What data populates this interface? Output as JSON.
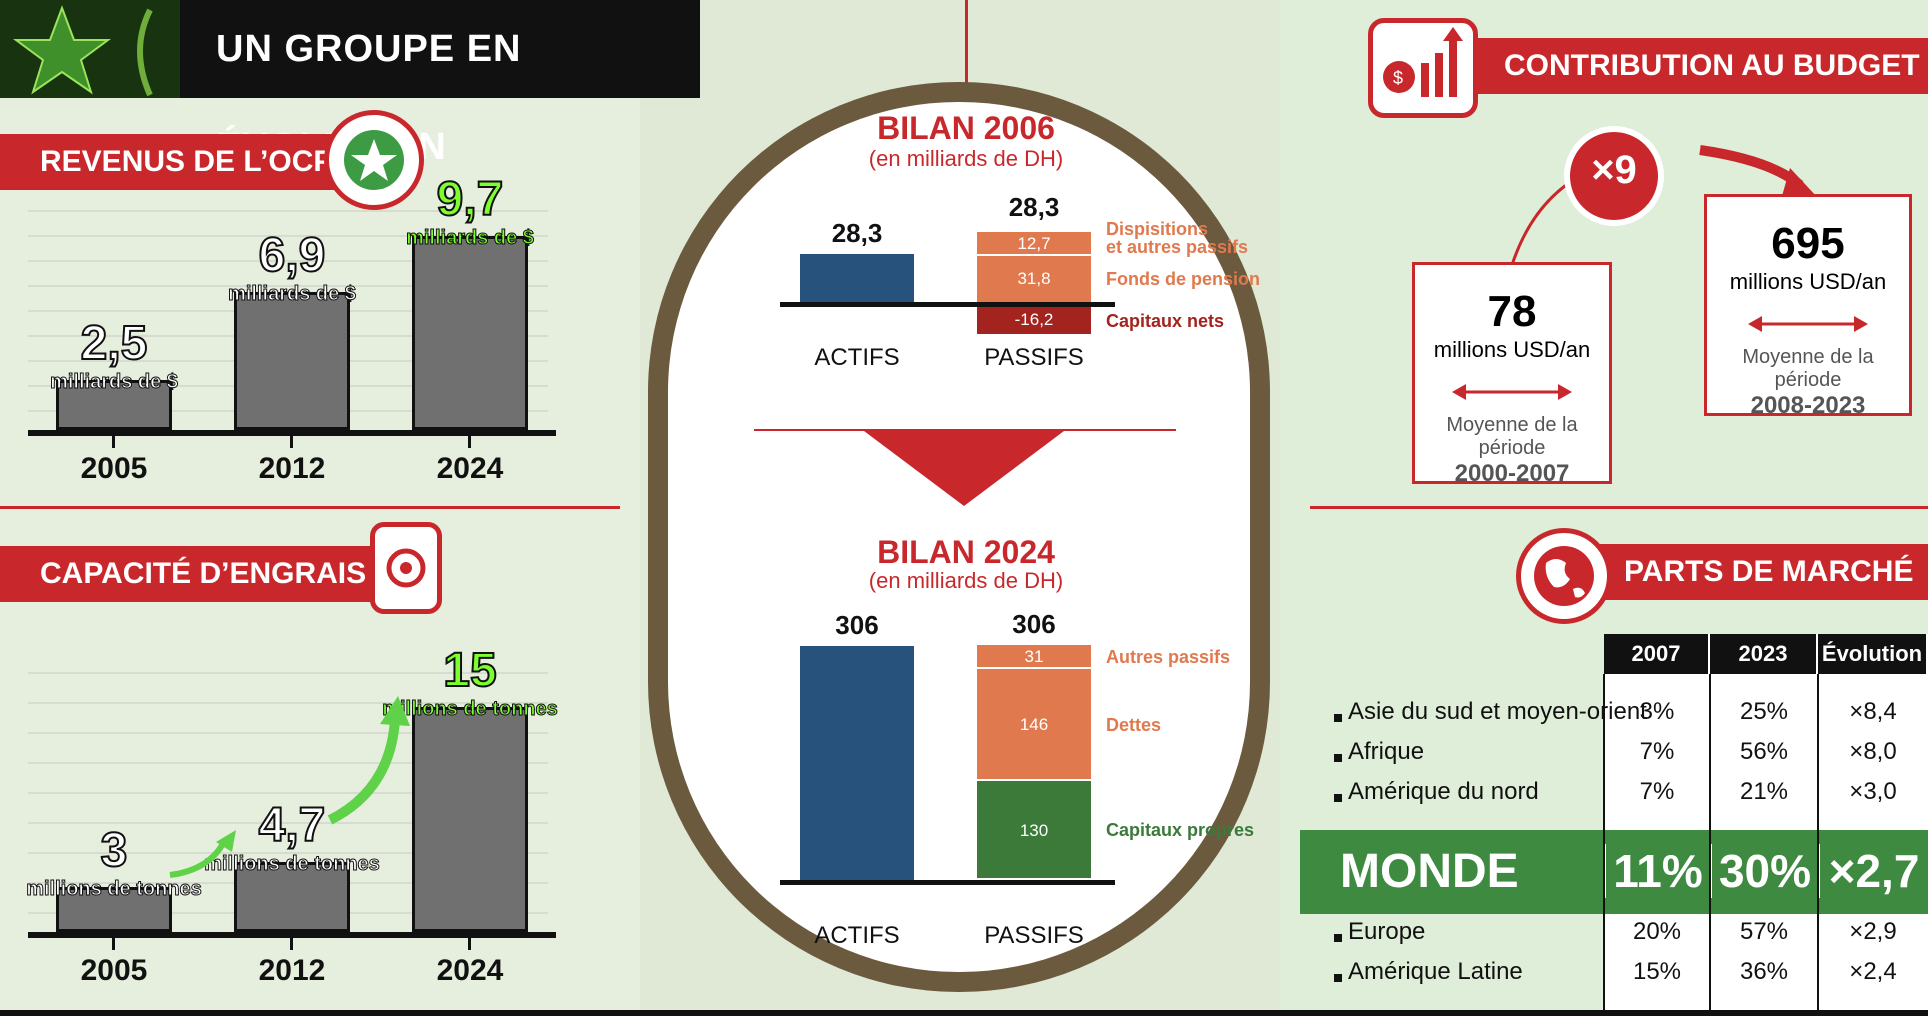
{
  "header": {
    "title": "UN GROUPE EN ÉVOLUTION"
  },
  "revenus": {
    "title": "REVENUS DE L’OCP",
    "chart_data": {
      "type": "bar",
      "categories": [
        "2005",
        "2012",
        "2024"
      ],
      "values": [
        2.5,
        6.9,
        9.7
      ],
      "value_labels": [
        "2,5",
        "6,9",
        "9,7"
      ],
      "unit": "milliards de $"
    }
  },
  "engrais": {
    "title": "CAPACITÉ D’ENGRAIS",
    "chart_data": {
      "type": "bar",
      "categories": [
        "2005",
        "2012",
        "2024"
      ],
      "values": [
        3,
        4.7,
        15
      ],
      "value_labels": [
        "3",
        "4,7",
        "15"
      ],
      "unit": "millions de tonnes"
    }
  },
  "bilan2006": {
    "title": "BILAN 2006",
    "subtitle": "(en milliards de DH)",
    "chart_data": {
      "type": "bar",
      "categories": [
        "ACTIFS",
        "PASSIFS"
      ],
      "totals": [
        "28,3",
        "28,3"
      ],
      "actifs": 28.3,
      "passifs": [
        {
          "name": "Dispisitions et autres passifs",
          "value": 12.7,
          "label": "12,7"
        },
        {
          "name": "Fonds de pension",
          "value": 31.8,
          "label": "31,8"
        },
        {
          "name": "Capitaux nets",
          "value": -16.2,
          "label": "-16,2"
        }
      ]
    },
    "legend": [
      "Dispisitions",
      "et autres passifs",
      "Fonds de pension",
      "Capitaux nets"
    ]
  },
  "bilan2024": {
    "title": "BILAN 2024",
    "subtitle": "(en milliards de DH)",
    "chart_data": {
      "type": "bar",
      "categories": [
        "ACTIFS",
        "PASSIFS"
      ],
      "totals": [
        "306",
        "306"
      ],
      "actifs": 306,
      "passifs": [
        {
          "name": "Autres passifs",
          "value": 31,
          "label": "31"
        },
        {
          "name": "Dettes",
          "value": 146,
          "label": "146"
        },
        {
          "name": "Capitaux propres",
          "value": 130,
          "label": "130"
        }
      ]
    }
  },
  "budget": {
    "title": "CONTRIBUTION AU BUDGET",
    "multiplier": "×9",
    "left": {
      "value": "78",
      "unit": "millions USD/an",
      "caption": "Moyenne de la période",
      "period": "2000-2007"
    },
    "right": {
      "value": "695",
      "unit": "millions USD/an",
      "caption": "Moyenne de la période",
      "period": "2008-2023"
    }
  },
  "market": {
    "title": "PARTS DE MARCHÉ",
    "chart_data": {
      "type": "table",
      "columns": [
        "2007",
        "2023",
        "Évolution"
      ],
      "rows": [
        {
          "region": "Asie du sud et moyen-orient",
          "v2007": "3%",
          "v2023": "25%",
          "evo": "×8,4"
        },
        {
          "region": "Afrique",
          "v2007": "7%",
          "v2023": "56%",
          "evo": "×8,0"
        },
        {
          "region": "Amérique du nord",
          "v2007": "7%",
          "v2023": "21%",
          "evo": "×3,0"
        },
        {
          "region": "MONDE",
          "v2007": "11%",
          "v2023": "30%",
          "evo": "×2,7"
        },
        {
          "region": "Europe",
          "v2007": "20%",
          "v2023": "57%",
          "evo": "×2,9"
        },
        {
          "region": "Amérique Latine",
          "v2007": "15%",
          "v2023": "36%",
          "evo": "×2,4"
        }
      ]
    }
  },
  "colors": {
    "red": "#c8282b",
    "blue": "#26527c",
    "orange": "#e07a4e",
    "darkred": "#a3231f",
    "green": "#3c7a3a",
    "lime": "#7cff2e",
    "bar": "#707070"
  },
  "icons": [
    "star-logo-icon",
    "wheat-icon",
    "ocp-logo-icon",
    "fertilizer-sack-icon",
    "budget-chart-icon",
    "globe-icon"
  ]
}
